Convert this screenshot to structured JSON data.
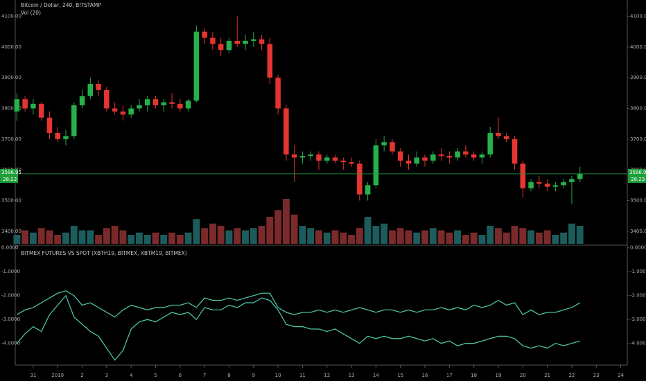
{
  "chart_data": [
    {
      "type": "candlestick",
      "title": "Bitcoin / Dollar, 240, BITSTAMP",
      "subtitle": "Vol (20)",
      "up_color": "#26b04a",
      "down_color": "#e53530",
      "volume_up_color": "#1d5c5c",
      "volume_down_color": "#7a2a2a",
      "open": [
        3790,
        3830,
        3800,
        3815,
        3770,
        3720,
        3700,
        3710,
        3810,
        3840,
        3880,
        3860,
        3800,
        3790,
        3780,
        3800,
        3810,
        3830,
        3810,
        3820,
        3815,
        3800,
        3825,
        4050,
        4030,
        4010,
        3990,
        4020,
        4010,
        4020,
        4025,
        4010,
        3900,
        3800,
        3650,
        3640,
        3645,
        3650,
        3630,
        3640,
        3630,
        3625,
        3620,
        3520,
        3550,
        3680,
        3690,
        3660,
        3630,
        3620,
        3640,
        3630,
        3650,
        3645,
        3640,
        3660,
        3650,
        3640,
        3650,
        3720,
        3710,
        3700,
        3620,
        3540,
        3560,
        3555,
        3545,
        3550,
        3560,
        3570
      ],
      "high": [
        3850,
        3840,
        3830,
        3820,
        3790,
        3740,
        3730,
        3820,
        3860,
        3900,
        3890,
        3870,
        3820,
        3810,
        3810,
        3830,
        3840,
        3840,
        3830,
        3850,
        3830,
        3830,
        4070,
        4060,
        4050,
        4030,
        4030,
        4100,
        4040,
        4050,
        4040,
        4030,
        3910,
        3810,
        3680,
        3660,
        3660,
        3660,
        3650,
        3650,
        3640,
        3640,
        3630,
        3560,
        3700,
        3710,
        3700,
        3670,
        3650,
        3660,
        3650,
        3660,
        3670,
        3660,
        3670,
        3680,
        3660,
        3660,
        3740,
        3770,
        3720,
        3710,
        3630,
        3570,
        3580,
        3570,
        3560,
        3570,
        3580,
        3610
      ],
      "low": [
        3760,
        3790,
        3780,
        3760,
        3700,
        3690,
        3680,
        3700,
        3800,
        3830,
        3840,
        3790,
        3780,
        3760,
        3770,
        3790,
        3790,
        3800,
        3790,
        3800,
        3790,
        3790,
        3820,
        4010,
        3990,
        3970,
        3980,
        4000,
        3990,
        4000,
        3990,
        3880,
        3780,
        3630,
        3560,
        3620,
        3630,
        3600,
        3620,
        3620,
        3600,
        3610,
        3500,
        3500,
        3540,
        3660,
        3650,
        3610,
        3600,
        3610,
        3610,
        3620,
        3630,
        3620,
        3630,
        3640,
        3630,
        3620,
        3640,
        3700,
        3690,
        3600,
        3510,
        3530,
        3540,
        3530,
        3530,
        3540,
        3490,
        3560
      ],
      "close": [
        3830,
        3800,
        3815,
        3770,
        3720,
        3700,
        3710,
        3810,
        3840,
        3880,
        3860,
        3800,
        3790,
        3780,
        3800,
        3810,
        3830,
        3810,
        3820,
        3815,
        3800,
        3825,
        4050,
        4030,
        4010,
        3990,
        4020,
        4010,
        4020,
        4025,
        4010,
        3900,
        3800,
        3650,
        3640,
        3645,
        3650,
        3630,
        3640,
        3630,
        3625,
        3620,
        3520,
        3550,
        3680,
        3690,
        3660,
        3630,
        3620,
        3640,
        3630,
        3650,
        3645,
        3640,
        3660,
        3650,
        3640,
        3650,
        3720,
        3710,
        3700,
        3620,
        3540,
        3560,
        3555,
        3545,
        3550,
        3560,
        3570,
        3587
      ],
      "volume": [
        20,
        30,
        25,
        35,
        30,
        20,
        25,
        40,
        30,
        30,
        20,
        35,
        40,
        30,
        20,
        25,
        20,
        25,
        20,
        25,
        20,
        25,
        55,
        35,
        45,
        40,
        30,
        35,
        30,
        35,
        40,
        60,
        75,
        100,
        65,
        40,
        35,
        30,
        25,
        30,
        25,
        20,
        35,
        60,
        40,
        45,
        30,
        35,
        30,
        25,
        30,
        35,
        30,
        25,
        30,
        20,
        25,
        20,
        40,
        35,
        25,
        40,
        35,
        30,
        25,
        30,
        20,
        25,
        45,
        40
      ],
      "xlim": [
        -0.2,
        74.8
      ],
      "ylim": [
        3359,
        4153
      ],
      "yticks": [
        {
          "value": 3400,
          "label": "3400.00"
        },
        {
          "value": 3500,
          "label": "3500.00"
        },
        {
          "value": 3600,
          "label": "3600.00"
        },
        {
          "value": 3700,
          "label": "3700.00"
        },
        {
          "value": 3800,
          "label": "3800.00"
        },
        {
          "value": 3900,
          "label": "3900.00"
        },
        {
          "value": 4000,
          "label": "4000.00"
        },
        {
          "value": 4100,
          "label": "4100.00"
        }
      ],
      "last_price": 3586.95,
      "countdown": "28:23",
      "price_line_color": "#1e9e3a"
    },
    {
      "type": "line",
      "title": "BITMEX FUTURES VS SPOT  (XBTH19, BITMEX, XBTM19, BITMEX)",
      "series": [
        {
          "color": "#4cc2a8",
          "values": [
            -2.8,
            -2.6,
            -2.5,
            -2.3,
            -2.1,
            -1.9,
            -1.8,
            -2.0,
            -2.4,
            -2.3,
            -2.5,
            -2.7,
            -2.9,
            -2.6,
            -2.4,
            -2.5,
            -2.6,
            -2.5,
            -2.5,
            -2.4,
            -2.4,
            -2.3,
            -2.5,
            -2.1,
            -2.2,
            -2.2,
            -2.1,
            -2.2,
            -2.1,
            -2.0,
            -1.9,
            -1.9,
            -2.5,
            -2.7,
            -2.8,
            -2.7,
            -2.7,
            -2.6,
            -2.7,
            -2.6,
            -2.7,
            -2.6,
            -2.5,
            -2.6,
            -2.7,
            -2.6,
            -2.6,
            -2.7,
            -2.6,
            -2.7,
            -2.6,
            -2.6,
            -2.5,
            -2.6,
            -2.5,
            -2.6,
            -2.4,
            -2.5,
            -2.4,
            -2.2,
            -2.4,
            -2.3,
            -2.8,
            -2.6,
            -2.8,
            -2.7,
            -2.7,
            -2.6,
            -2.5,
            -2.3
          ]
        },
        {
          "color": "#4cc2a8",
          "values": [
            -4.0,
            -3.6,
            -3.3,
            -3.5,
            -2.8,
            -2.4,
            -2.0,
            -2.9,
            -3.2,
            -3.5,
            -3.7,
            -4.2,
            -4.7,
            -4.3,
            -3.4,
            -3.1,
            -3.0,
            -3.1,
            -2.9,
            -2.7,
            -2.8,
            -2.7,
            -3.0,
            -2.5,
            -2.6,
            -2.6,
            -2.4,
            -2.5,
            -2.3,
            -2.3,
            -2.1,
            -2.2,
            -2.6,
            -3.2,
            -3.3,
            -3.3,
            -3.4,
            -3.4,
            -3.5,
            -3.4,
            -3.6,
            -3.8,
            -4.0,
            -3.7,
            -3.8,
            -3.7,
            -3.8,
            -3.8,
            -3.7,
            -3.8,
            -3.9,
            -3.8,
            -4.0,
            -3.9,
            -4.1,
            -4.0,
            -4.0,
            -3.9,
            -3.8,
            -3.7,
            -3.7,
            -3.8,
            -4.1,
            -4.2,
            -4.1,
            -4.2,
            -4.0,
            -4.1,
            -4.0,
            -3.9
          ]
        }
      ],
      "xlim": [
        -0.2,
        74.8
      ],
      "xticks": [
        {
          "value": 2,
          "label": "31"
        },
        {
          "value": 5,
          "label": "2019"
        },
        {
          "value": 8,
          "label": "2"
        },
        {
          "value": 11,
          "label": "3"
        },
        {
          "value": 14,
          "label": "4"
        },
        {
          "value": 17,
          "label": "5"
        },
        {
          "value": 20,
          "label": "6"
        },
        {
          "value": 23,
          "label": "7"
        },
        {
          "value": 26,
          "label": "8"
        },
        {
          "value": 29,
          "label": "9"
        },
        {
          "value": 32,
          "label": "10"
        },
        {
          "value": 35,
          "label": "11"
        },
        {
          "value": 38,
          "label": "12"
        },
        {
          "value": 41,
          "label": "13"
        },
        {
          "value": 44,
          "label": "14"
        },
        {
          "value": 47,
          "label": "15"
        },
        {
          "value": 50,
          "label": "16"
        },
        {
          "value": 53,
          "label": "17"
        },
        {
          "value": 56,
          "label": "18"
        },
        {
          "value": 59,
          "label": "19"
        },
        {
          "value": 62,
          "label": "20"
        },
        {
          "value": 65,
          "label": "21"
        },
        {
          "value": 68,
          "label": "22"
        },
        {
          "value": 71,
          "label": "23"
        },
        {
          "value": 74,
          "label": "24"
        }
      ],
      "ylim": [
        -4.85,
        0.05
      ],
      "yticks": [
        {
          "value": 0,
          "label": "0.0000"
        },
        {
          "value": -1,
          "label": "-1.0000"
        },
        {
          "value": -2,
          "label": "-2.0000"
        },
        {
          "value": -3,
          "label": "-3.0000"
        },
        {
          "value": -4,
          "label": "-4.0000"
        }
      ]
    }
  ]
}
